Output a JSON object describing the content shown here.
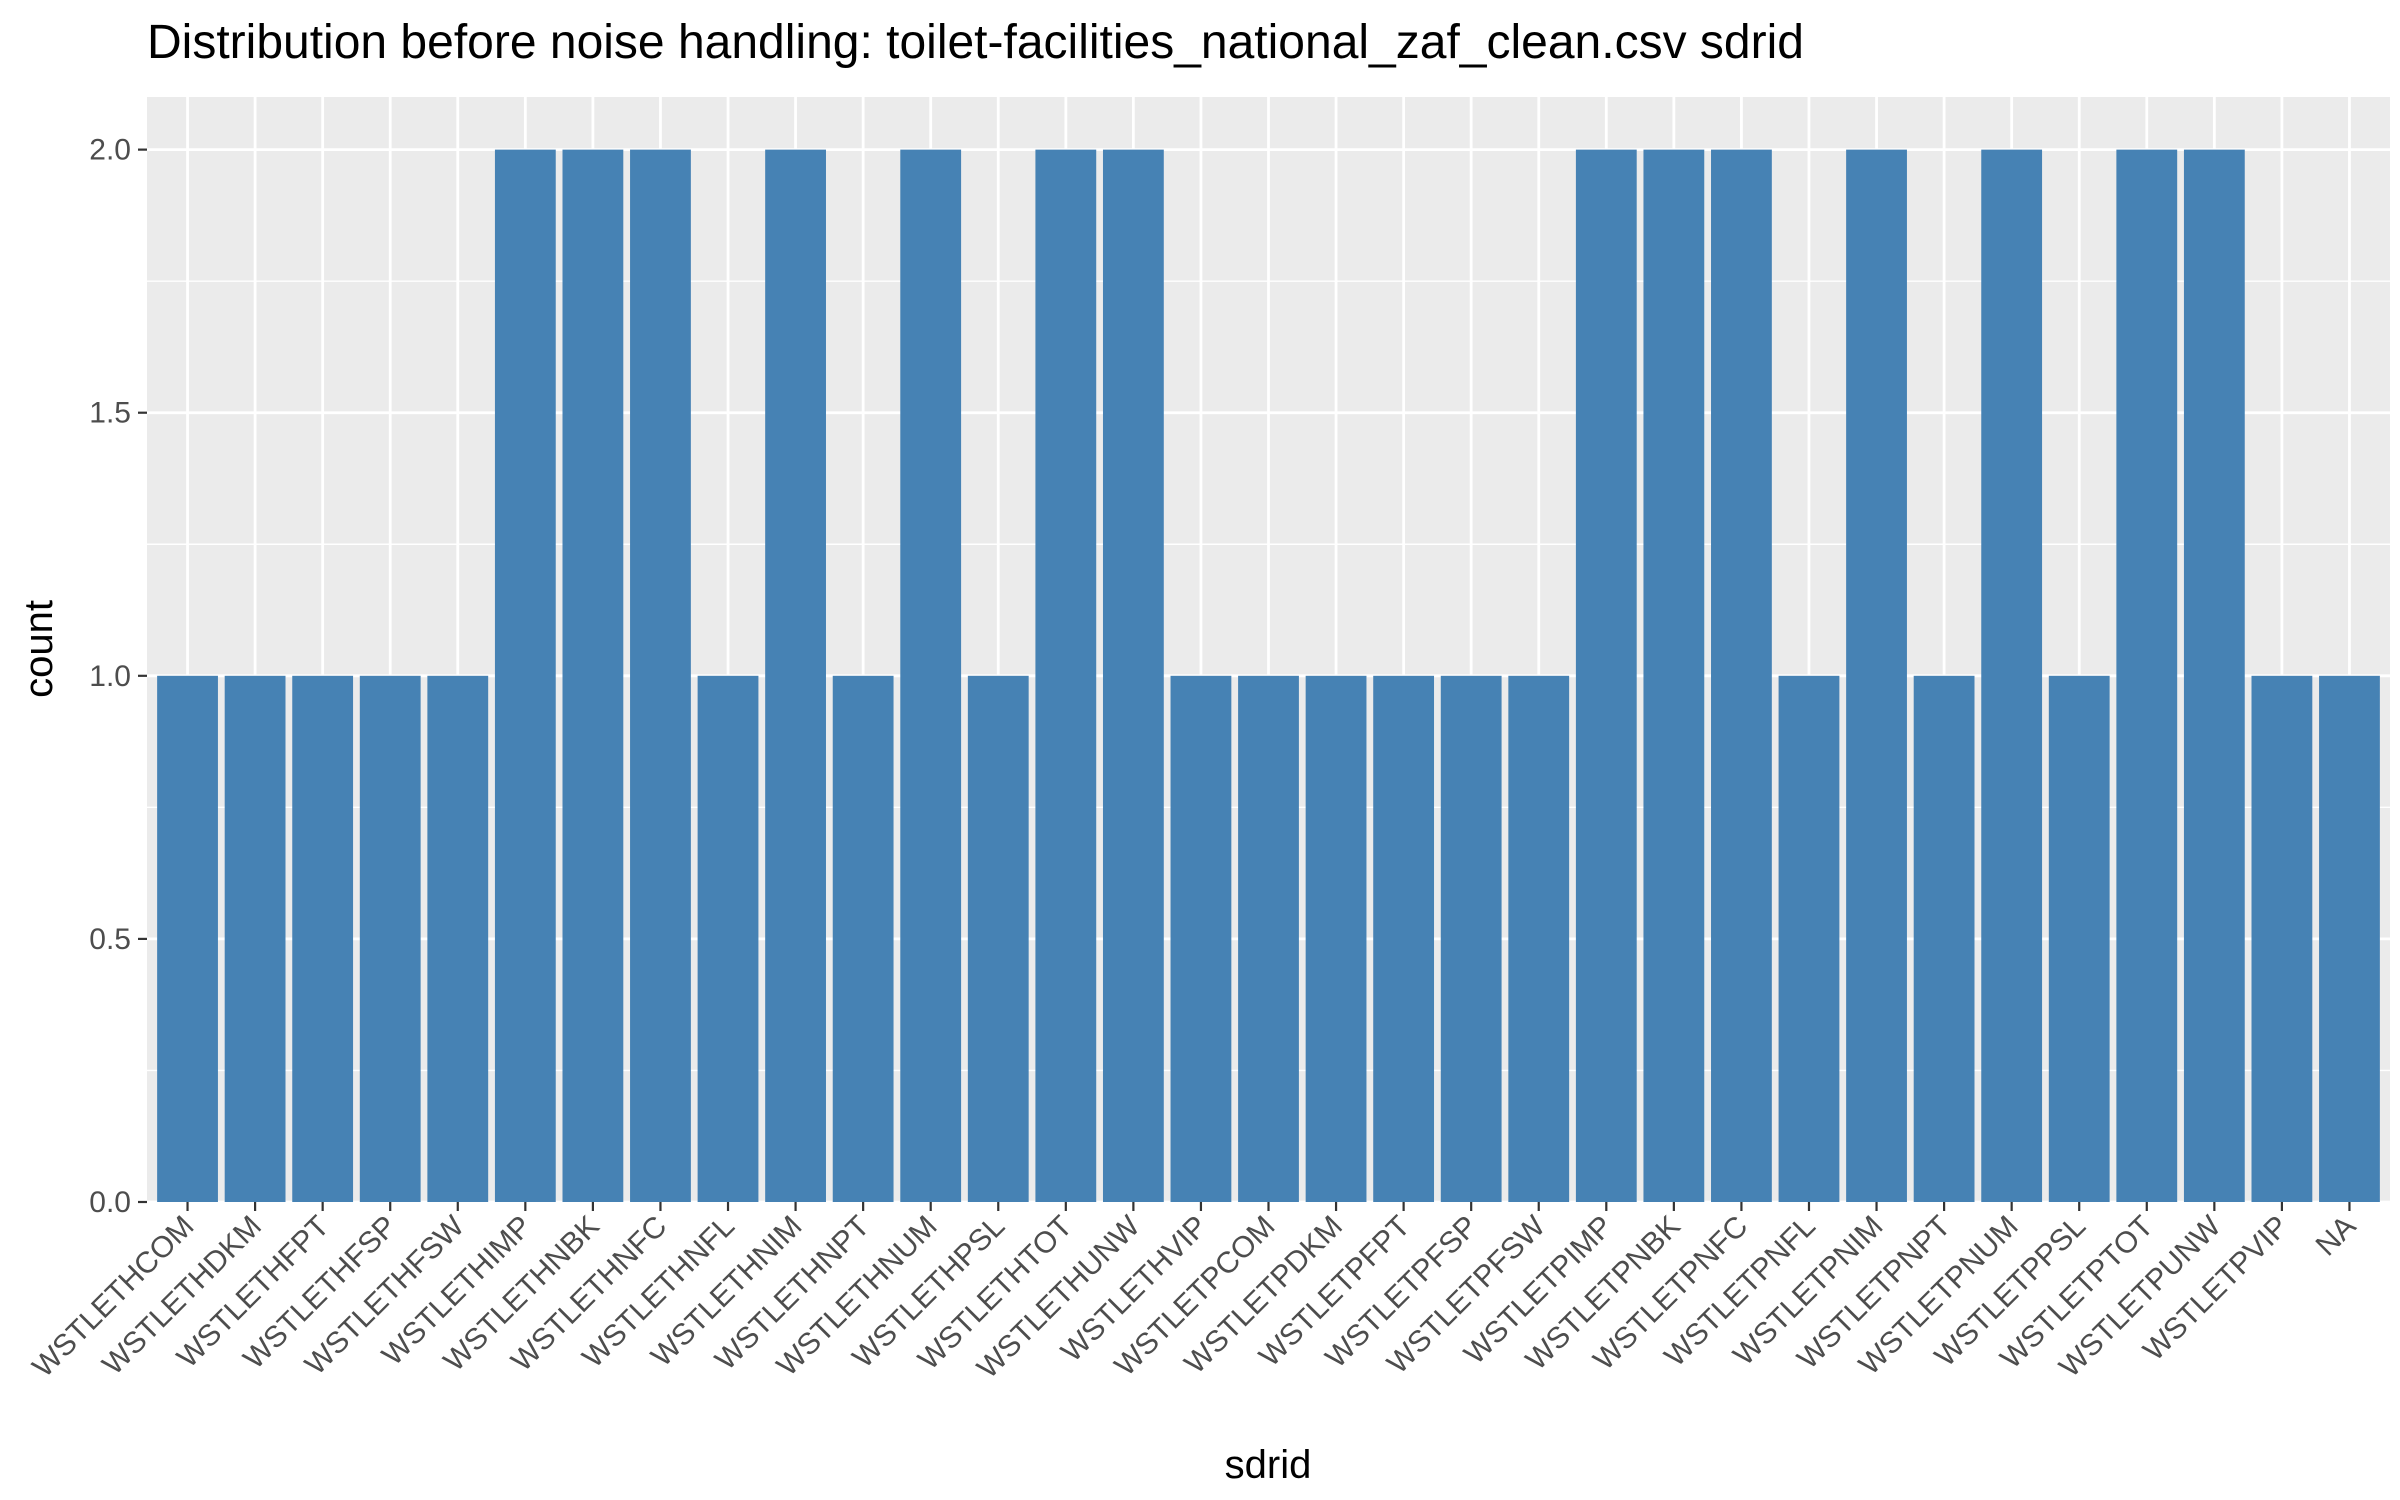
{
  "chart_data": {
    "type": "bar",
    "title": "Distribution before noise handling: toilet-facilities_national_zaf_clean.csv sdrid",
    "xlabel": "sdrid",
    "ylabel": "count",
    "ylim": [
      0,
      2.1
    ],
    "yticks": [
      "0.0",
      "0.5",
      "1.0",
      "1.5",
      "2.0"
    ],
    "grid": true,
    "bar_color": "#4682B4",
    "panel_background": "#EBEBEB",
    "categories": [
      "WSTLETHCOM",
      "WSTLETHDKM",
      "WSTLETHFPT",
      "WSTLETHFSP",
      "WSTLETHFSW",
      "WSTLETHIMP",
      "WSTLETHNBK",
      "WSTLETHNFC",
      "WSTLETHNFL",
      "WSTLETHNIM",
      "WSTLETHNPT",
      "WSTLETHNUM",
      "WSTLETHPSL",
      "WSTLETHTOT",
      "WSTLETHUNW",
      "WSTLETHVIP",
      "WSTLETPCOM",
      "WSTLETPDKM",
      "WSTLETPFPT",
      "WSTLETPFSP",
      "WSTLETPFSW",
      "WSTLETPIMP",
      "WSTLETPNBK",
      "WSTLETPNFC",
      "WSTLETPNFL",
      "WSTLETPNIM",
      "WSTLETPNPT",
      "WSTLETPNUM",
      "WSTLETPPSL",
      "WSTLETPTOT",
      "WSTLETPUNW",
      "WSTLETPVIP",
      "NA"
    ],
    "values": [
      1,
      1,
      1,
      1,
      1,
      2,
      2,
      2,
      1,
      2,
      1,
      2,
      1,
      2,
      2,
      1,
      1,
      1,
      1,
      1,
      1,
      2,
      2,
      2,
      1,
      2,
      1,
      2,
      1,
      2,
      2,
      1,
      1
    ]
  }
}
